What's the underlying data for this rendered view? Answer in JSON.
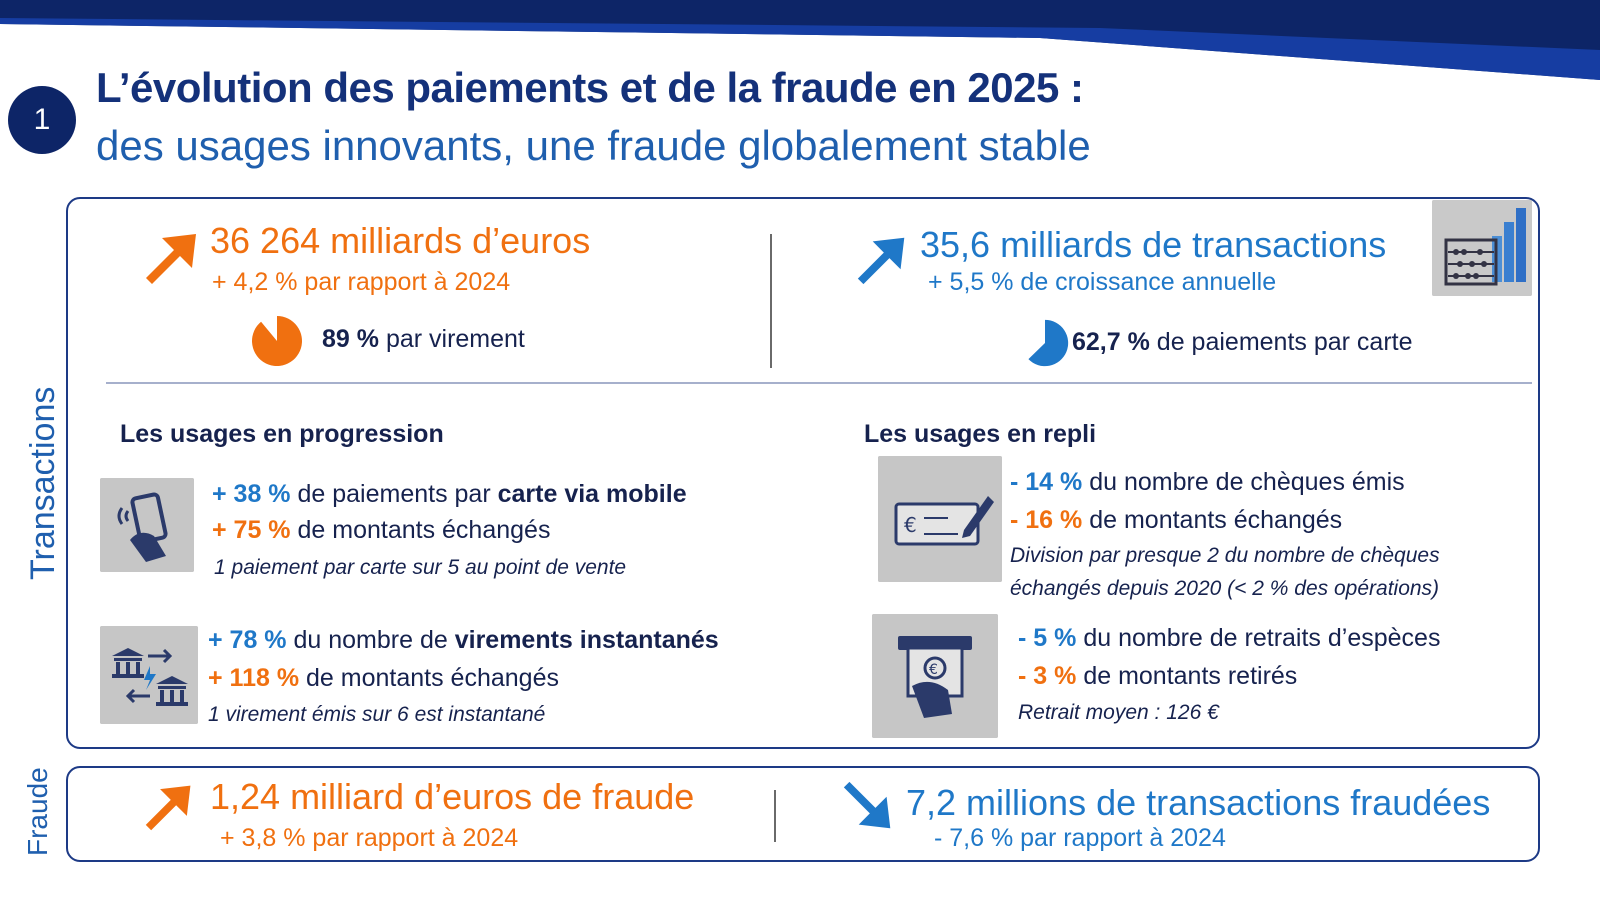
{
  "header": {
    "step_number": "1",
    "title": "L’évolution des paiements et de la fraude en 2025 :",
    "subtitle": "des usages innovants, une fraude globalement stable",
    "band_color": "#0d2567"
  },
  "transactions": {
    "side_label": "Transactions",
    "amount": {
      "headline": "36 264 milliards d’euros",
      "change": "+ 4,2 % par rapport à 2024",
      "share_value": "89 %",
      "share_text": "par virement",
      "share_fraction": 0.89,
      "trend_icon": "arrow-up-icon"
    },
    "count": {
      "headline": "35,6 milliards de transactions",
      "change": "+ 5,5 % de croissance annuelle",
      "share_value": "62,7 %",
      "share_text": "de paiements par carte",
      "share_fraction": 0.627,
      "trend_icon": "arrow-up-icon",
      "illustration": "abacus-chart-icon"
    },
    "progression": {
      "heading": "Les usages en progression",
      "mobile": {
        "icon": "mobile-payment-icon",
        "l1_value": "+ 38 %",
        "l1_text": "de paiements par",
        "l1_bold": "carte via mobile",
        "l2_value": "+ 75 %",
        "l2_text": "de montants échangés",
        "note": "1 paiement par carte sur 5 au point de vente"
      },
      "instant": {
        "icon": "bank-transfer-icon",
        "l1_value": "+ 78 %",
        "l1_text": "du nombre de",
        "l1_bold": "virements instantanés",
        "l2_value": "+ 118 %",
        "l2_text": "de montants échangés",
        "note": "1 virement émis sur 6 est instantané"
      }
    },
    "decline": {
      "heading": "Les usages en repli",
      "cheques": {
        "icon": "cheque-icon",
        "l1_value": "- 14 %",
        "l1_text": "du nombre de chèques émis",
        "l2_value": "- 16 %",
        "l2_text": "de montants échangés",
        "note_1": "Division par presque 2 du nombre de chèques",
        "note_2": "échangés depuis 2020 (< 2 % des opérations)"
      },
      "cash": {
        "icon": "atm-withdrawal-icon",
        "l1_value": "- 5 %",
        "l1_text": "du nombre de retraits d’espèces",
        "l2_value": "- 3 %",
        "l2_text": "de montants retirés",
        "note": "Retrait moyen : 126 €"
      }
    }
  },
  "fraud": {
    "side_label": "Fraude",
    "amount": {
      "headline": "1,24 milliard d’euros de fraude",
      "change": "+ 3,8 % par rapport à 2024",
      "trend_icon": "arrow-up-icon"
    },
    "count": {
      "headline": "7,2 millions de transactions fraudées",
      "change": "- 7,6 % par rapport à 2024",
      "trend_icon": "arrow-down-icon"
    }
  },
  "colors": {
    "orange": "#f07010",
    "blue": "#1f78c8",
    "navy": "#16224e",
    "border": "#1d3a86"
  }
}
